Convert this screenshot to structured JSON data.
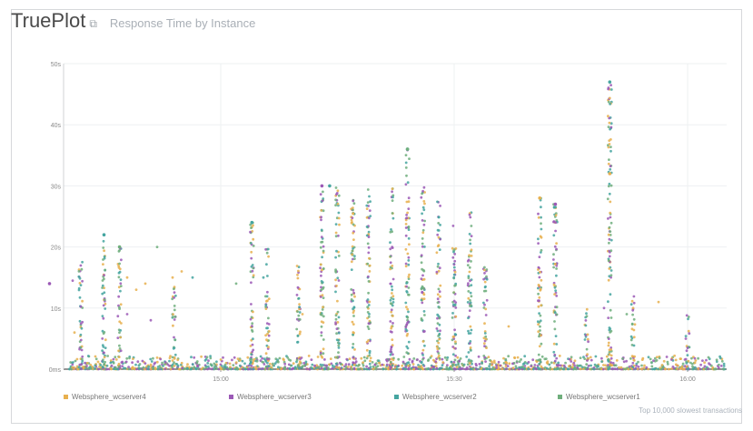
{
  "header": {
    "app_title": "TruePlot",
    "popout_icon": "external-link-icon",
    "subtitle": "Response Time by Instance"
  },
  "chart_data": {
    "type": "scatter",
    "title": "Response Time by Instance",
    "xlabel": "",
    "ylabel": "",
    "x_ticks": [
      "15:00",
      "15:30",
      "16:00"
    ],
    "y_ticks": [
      "0ms",
      "10s",
      "20s",
      "30s",
      "40s",
      "50s"
    ],
    "ylim": [
      0,
      50
    ],
    "grid": true,
    "legend_position": "bottom",
    "series": [
      {
        "name": "Websphere_wcserver4",
        "color": "#e8b04f"
      },
      {
        "name": "Websphere_wcserver3",
        "color": "#9b59b6"
      },
      {
        "name": "Websphere_wcserver2",
        "color": "#45a5a0"
      },
      {
        "name": "Websphere_wcserver1",
        "color": "#6fae7c"
      }
    ],
    "notable_points": [
      {
        "series": "Websphere_wcserver2",
        "x": "15:50",
        "y": 47
      },
      {
        "series": "Websphere_wcserver2",
        "x": "15:24",
        "y": 36
      },
      {
        "series": "Websphere_wcserver1",
        "x": "15:24",
        "y": 36
      },
      {
        "series": "Websphere_wcserver4",
        "x": "15:50",
        "y": 32
      },
      {
        "series": "Websphere_wcserver3",
        "x": "15:13",
        "y": 30
      },
      {
        "series": "Websphere_wcserver2",
        "x": "15:14",
        "y": 30
      },
      {
        "series": "Websphere_wcserver2",
        "x": "14:45",
        "y": 22
      },
      {
        "series": "Websphere_wcserver1",
        "x": "14:47",
        "y": 20
      },
      {
        "series": "Websphere_wcserver2",
        "x": "15:04",
        "y": 24
      },
      {
        "series": "Websphere_wcserver4",
        "x": "15:41",
        "y": 28
      },
      {
        "series": "Websphere_wcserver3",
        "x": "15:43",
        "y": 27
      },
      {
        "series": "Websphere_wcserver3",
        "x": "14:38",
        "y": 14
      }
    ]
  },
  "footer": "Top 10,000 slowest transactions"
}
